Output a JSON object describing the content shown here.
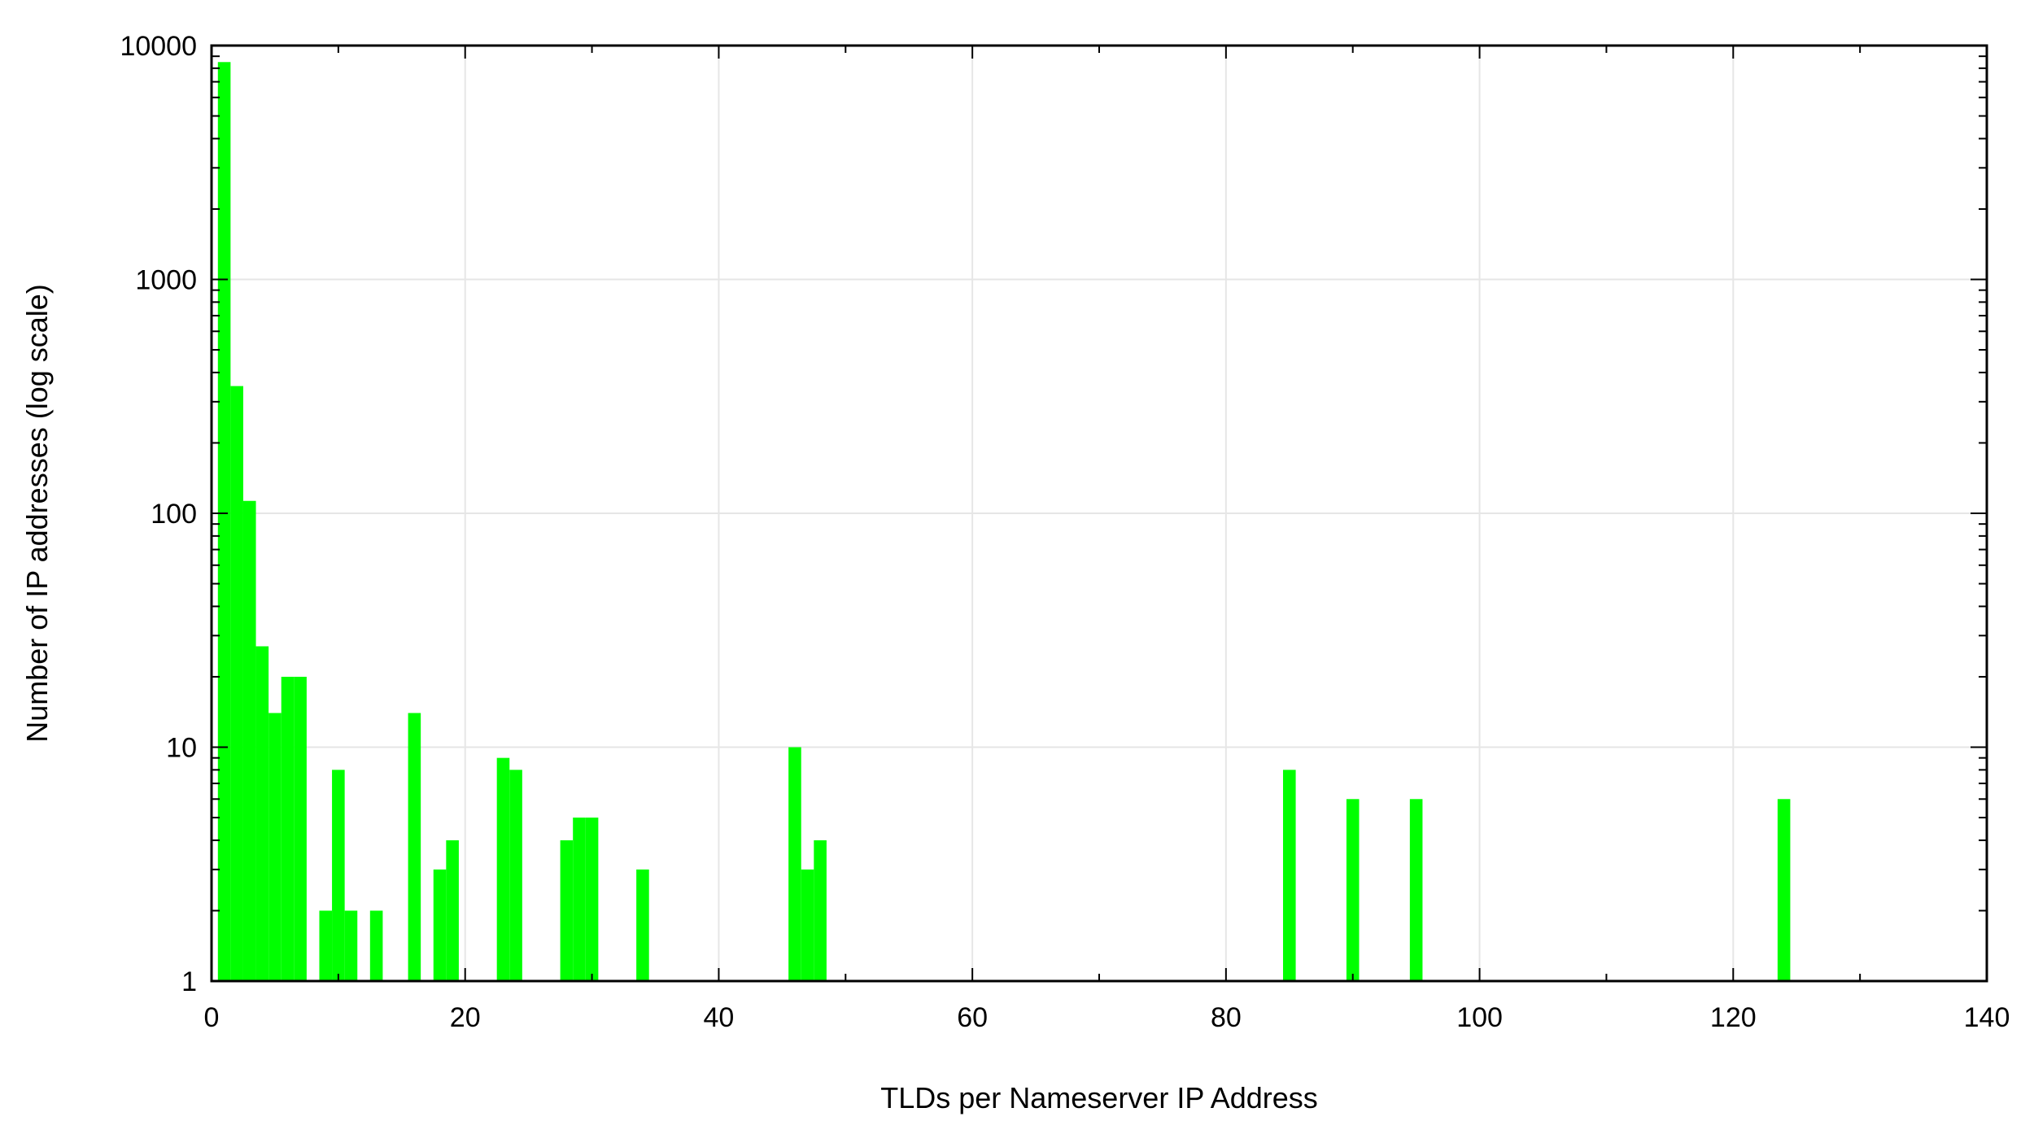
{
  "chart_data": {
    "type": "bar",
    "title": "",
    "xlabel": "TLDs per Nameserver IP Address",
    "ylabel": "Number of IP addresses (log scale)",
    "xlim": [
      0,
      140
    ],
    "ylim": [
      1,
      10000
    ],
    "yscale": "log",
    "grid": true,
    "x_ticks": [
      "0",
      "20",
      "40",
      "60",
      "80",
      "100",
      "120",
      "140"
    ],
    "y_ticks": [
      "1",
      "10",
      "100",
      "1000",
      "10000"
    ],
    "bar_color": "#00ff00",
    "series": [
      {
        "x": [
          1,
          2,
          3,
          4,
          5,
          6,
          7,
          9,
          10,
          11,
          13,
          16,
          18,
          19,
          23,
          24,
          28,
          29,
          30,
          34,
          46,
          47,
          48,
          85,
          90,
          95,
          124
        ],
        "values": [
          8500,
          350,
          113,
          27,
          14,
          20,
          20,
          2,
          8,
          2,
          2,
          14,
          3,
          4,
          9,
          8,
          4,
          5,
          5,
          3,
          10,
          3,
          4,
          8,
          6,
          6,
          6
        ]
      }
    ]
  }
}
